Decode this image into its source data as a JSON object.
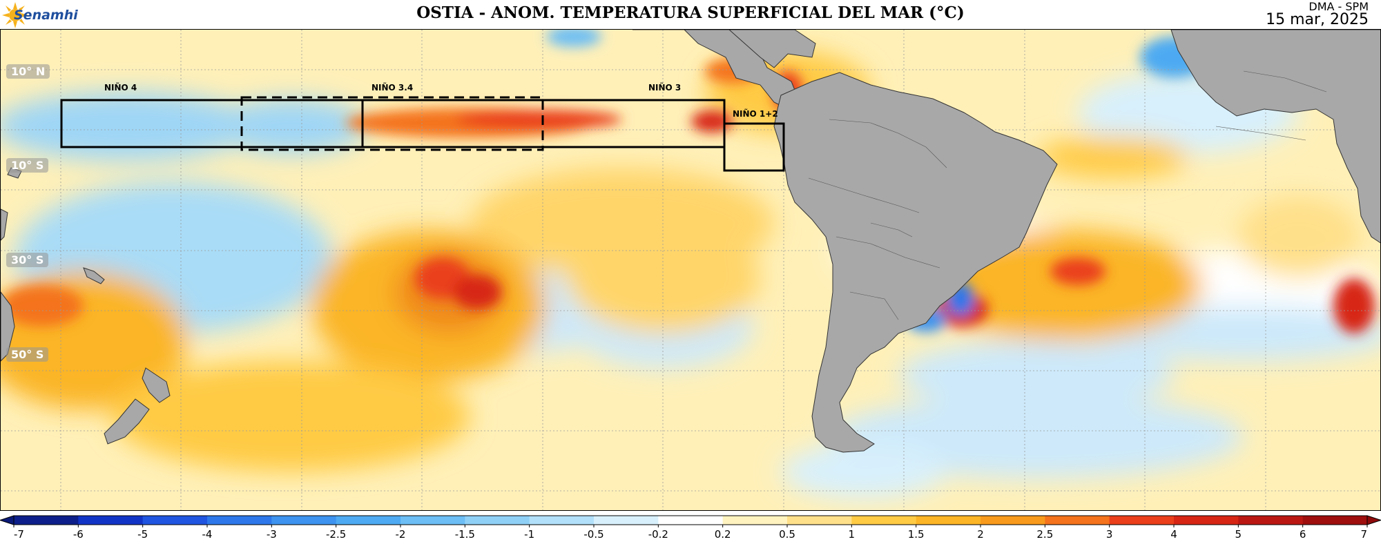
{
  "header": {
    "logo_text": "Senamhi",
    "title": "OSTIA - ANOM. TEMPERATURA SUPERFICIAL DEL MAR (°C)",
    "org": "DMA - SPM",
    "date": "15 mar, 2025"
  },
  "map": {
    "latitude_labels": [
      "10° N",
      "10° S",
      "30° S",
      "50° S"
    ],
    "regions": [
      "NIÑO 4",
      "NIÑO 3.4",
      "NIÑO 3",
      "NIÑO 1+2"
    ]
  },
  "colorbar": {
    "ticks": [
      "-7",
      "-6",
      "-5",
      "-4",
      "-3",
      "-2.5",
      "-2",
      "-1.5",
      "-1",
      "-0.5",
      "-0.2",
      "0.2",
      "0.5",
      "1",
      "1.5",
      "2",
      "2.5",
      "3",
      "4",
      "5",
      "6",
      "7"
    ],
    "colors": [
      "#0d1f8a",
      "#1234c6",
      "#1f55e0",
      "#2d77ea",
      "#3d93ef",
      "#4eaaf2",
      "#6cbef5",
      "#8fd0f7",
      "#b2e0fa",
      "#d8f0fc",
      "#ffffff",
      "#fff3c0",
      "#ffe08a",
      "#ffcb45",
      "#fbb526",
      "#f89a1c",
      "#f4731c",
      "#ea3f1a",
      "#d72614",
      "#bb1712",
      "#9e0f0e"
    ],
    "arrow_low": "#0a1a78",
    "arrow_high": "#8e0b0b"
  }
}
